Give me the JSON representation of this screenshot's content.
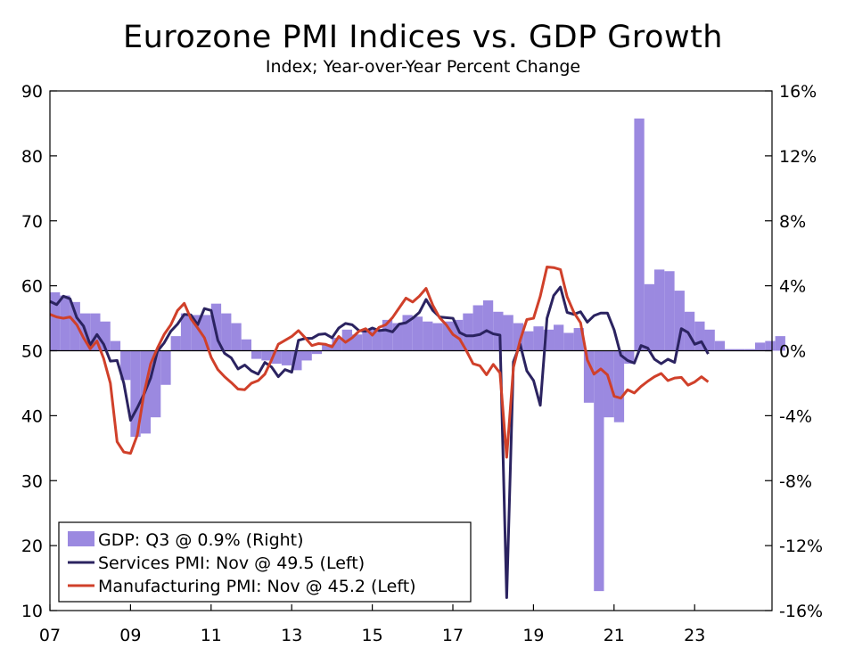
{
  "chart_data": {
    "type": "bar+line",
    "title": "Eurozone PMI Indices vs. GDP Growth",
    "subtitle": "Index; Year-over-Year Percent Change",
    "x_ticks": [
      {
        "year": 2007,
        "label": "07"
      },
      {
        "year": 2009,
        "label": "09"
      },
      {
        "year": 2011,
        "label": "11"
      },
      {
        "year": 2013,
        "label": "13"
      },
      {
        "year": 2015,
        "label": "15"
      },
      {
        "year": 2017,
        "label": "17"
      },
      {
        "year": 2019,
        "label": "19"
      },
      {
        "year": 2021,
        "label": "21"
      },
      {
        "year": 2023,
        "label": "23"
      }
    ],
    "x_range": [
      2007.0,
      2024.92
    ],
    "left_axis": {
      "ylim": [
        10,
        90
      ],
      "ticks": [
        {
          "v": 90,
          "label": "90"
        },
        {
          "v": 80,
          "label": "80"
        },
        {
          "v": 70,
          "label": "70"
        },
        {
          "v": 60,
          "label": "60"
        },
        {
          "v": 50,
          "label": "50"
        },
        {
          "v": 40,
          "label": "40"
        },
        {
          "v": 30,
          "label": "30"
        },
        {
          "v": 20,
          "label": "20"
        },
        {
          "v": 10,
          "label": "10"
        }
      ]
    },
    "right_axis": {
      "ylim": [
        -16,
        16
      ],
      "ticks": [
        {
          "v": 16,
          "label": "16%"
        },
        {
          "v": 12,
          "label": "12%"
        },
        {
          "v": 8,
          "label": "8%"
        },
        {
          "v": 4,
          "label": "4%"
        },
        {
          "v": 0,
          "label": "0%"
        },
        {
          "v": -4,
          "label": "-4%"
        },
        {
          "v": -8,
          "label": "-8%"
        },
        {
          "v": -12,
          "label": "-12%"
        },
        {
          "v": -16,
          "label": "-16%"
        }
      ]
    },
    "legend": {
      "position": "bottom-left",
      "entries": [
        {
          "key": "gdp",
          "label": "GDP: Q3 @ 0.9% (Right)"
        },
        {
          "key": "services",
          "label": "Services PMI: Nov @ 49.5 (Left)"
        },
        {
          "key": "manufacturing",
          "label": "Manufacturing PMI: Nov @ 45.2 (Left)"
        }
      ]
    },
    "colors": {
      "gdp": "#9b89e0",
      "services": "#2b2360",
      "manufacturing": "#d0402a"
    },
    "gdp_quarterly": {
      "axis": "right",
      "start_year": 2007.0,
      "step_years": 0.25,
      "values": [
        3.6,
        3.4,
        3.0,
        2.3,
        2.3,
        1.8,
        0.6,
        -1.8,
        -5.3,
        -5.1,
        -4.1,
        -2.1,
        0.9,
        2.3,
        2.2,
        2.2,
        2.9,
        2.3,
        1.7,
        0.7,
        -0.5,
        -0.6,
        -0.8,
        -0.9,
        -1.2,
        -0.6,
        -0.2,
        0.4,
        0.8,
        1.3,
        1.0,
        1.3,
        1.3,
        1.9,
        1.7,
        2.2,
        2.1,
        1.8,
        1.7,
        1.8,
        1.9,
        2.3,
        2.8,
        3.1,
        2.4,
        2.2,
        1.7,
        1.2,
        1.5,
        1.3,
        1.6,
        1.1,
        1.4,
        -3.2,
        -14.8,
        -4.1,
        -4.4,
        -0.8,
        14.3,
        4.1,
        5.0,
        4.9,
        3.7,
        2.4,
        1.8,
        1.3,
        0.6,
        0.1,
        0.1,
        0.1,
        0.5,
        0.6,
        0.9
      ]
    },
    "services_pmi": {
      "axis": "left",
      "start_year": 2007.0,
      "step_years": 0.1667,
      "values": [
        57.6,
        57.1,
        58.4,
        58.0,
        55.1,
        53.8,
        50.9,
        52.5,
        51.0,
        48.4,
        48.5,
        45.0,
        39.3,
        41.2,
        43.3,
        45.8,
        49.9,
        51.2,
        53.0,
        54.1,
        55.6,
        55.5,
        54.0,
        56.5,
        56.2,
        51.6,
        49.6,
        48.9,
        47.2,
        47.8,
        46.9,
        46.4,
        48.2,
        47.5,
        46.0,
        47.1,
        46.7,
        51.6,
        51.9,
        51.9,
        52.5,
        52.6,
        52.0,
        53.5,
        54.2,
        54.0,
        53.1,
        53.0,
        53.5,
        53.1,
        53.2,
        52.9,
        54.1,
        54.3,
        55.0,
        55.9,
        57.9,
        56.2,
        55.2,
        55.1,
        55.0,
        52.8,
        52.3,
        52.3,
        52.5,
        53.1,
        52.6,
        52.4,
        12.0,
        48.3,
        51.0,
        46.9,
        45.4,
        41.6,
        55.0,
        58.5,
        59.8,
        55.9,
        55.6,
        56.0,
        54.4,
        55.4,
        55.8,
        55.8,
        53.2,
        49.3,
        48.5,
        48.1,
        50.8,
        50.4,
        48.7,
        48.0,
        48.7,
        48.2,
        53.4,
        52.8,
        51.0,
        51.4,
        49.5
      ]
    },
    "manufacturing_pmi": {
      "axis": "left",
      "start_year": 2007.0,
      "step_years": 0.1667,
      "values": [
        55.6,
        55.2,
        55.0,
        55.2,
        54.0,
        52.0,
        50.3,
        51.5,
        48.8,
        45.0,
        36.0,
        34.4,
        34.2,
        37.0,
        43.4,
        48.0,
        50.4,
        52.5,
        54.0,
        56.2,
        57.3,
        54.9,
        53.5,
        52.0,
        49.0,
        47.1,
        46.0,
        45.1,
        44.1,
        44.0,
        45.0,
        45.4,
        46.4,
        48.6,
        51.0,
        51.6,
        52.2,
        53.1,
        52.0,
        50.8,
        51.1,
        51.0,
        50.6,
        52.2,
        51.3,
        52.0,
        53.0,
        53.4,
        52.4,
        53.6,
        54.0,
        55.1,
        56.6,
        58.1,
        57.5,
        58.4,
        59.6,
        57.0,
        55.1,
        54.0,
        52.5,
        51.8,
        50.0,
        48.0,
        47.7,
        46.3,
        47.9,
        46.6,
        33.6,
        47.4,
        51.6,
        54.8,
        55.0,
        58.4,
        62.9,
        62.8,
        62.5,
        58.3,
        55.9,
        54.3,
        48.6,
        46.4,
        47.2,
        46.3,
        43.0,
        42.7,
        44.0,
        43.5,
        44.5,
        45.3,
        46.0,
        46.5,
        45.4,
        45.8,
        45.9,
        44.7,
        45.2,
        46.0,
        45.2
      ]
    }
  }
}
